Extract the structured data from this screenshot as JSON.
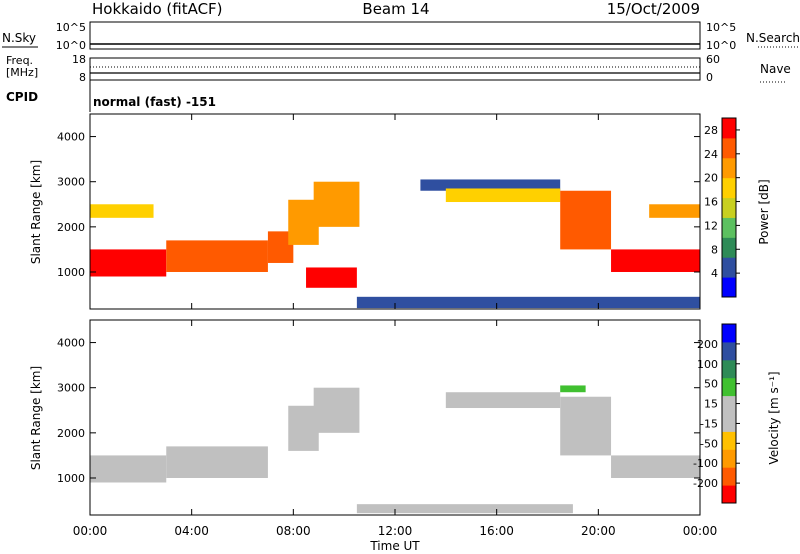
{
  "header": {
    "station": "Hokkaido (fitACF)",
    "beam": "Beam 14",
    "date": "15/Oct/2009"
  },
  "top_panels": {
    "nsky_label": "N.Sky",
    "nsky_ticks": [
      "10^5",
      "10^0"
    ],
    "nsearch_label": "N.Search",
    "nsearch_ticks": [
      "10^5",
      "10^0"
    ],
    "freq_label_1": "Freq.",
    "freq_label_2": "[MHz]",
    "freq_ticks": [
      "18",
      "8"
    ],
    "nave_label": "Nave",
    "nave_ticks": [
      "60",
      "0"
    ],
    "cpid_label": "CPID",
    "cpid_value": "normal (fast) -151"
  },
  "colors": {
    "power": [
      "#0000ff",
      "#2f4fa0",
      "#2e8b57",
      "#5cc060",
      "#c8d020",
      "#ffd000",
      "#ff9a00",
      "#ff5a00",
      "#ff0000"
    ],
    "velocity": [
      "#ff0000",
      "#ff5a00",
      "#ff9a00",
      "#ffc000",
      "#c0c0c0",
      "#c0c0c0",
      "#40c030",
      "#2e8b57",
      "#2f4fa0",
      "#0000ff"
    ],
    "ground": "#c0c0c0"
  },
  "chart_data": [
    {
      "type": "heatmap",
      "name": "power",
      "ylabel": "Slant Range [km]",
      "xlabel": "",
      "xlim": [
        "00:00",
        "24:00"
      ],
      "ylim": [
        180,
        4500
      ],
      "yticks": [
        "1000",
        "2000",
        "3000",
        "4000"
      ],
      "xticks": [
        "00:00",
        "04:00",
        "08:00",
        "12:00",
        "16:00",
        "20:00",
        "00:00"
      ],
      "colorbar_label": "Power [dB]",
      "colorbar_ticks": [
        "4",
        "8",
        "12",
        "16",
        "20",
        "24",
        "28"
      ],
      "colorbar_range": [
        0,
        30
      ],
      "regions": [
        {
          "t0": 0.0,
          "t1": 3.0,
          "r0": 900,
          "r1": 1500,
          "value": 28
        },
        {
          "t0": 3.0,
          "t1": 7.0,
          "r0": 1000,
          "r1": 1700,
          "value": 26
        },
        {
          "t0": 7.0,
          "t1": 8.0,
          "r0": 1200,
          "r1": 1900,
          "value": 24
        },
        {
          "t0": 7.8,
          "t1": 9.0,
          "r0": 1600,
          "r1": 2600,
          "value": 22
        },
        {
          "t0": 8.8,
          "t1": 10.6,
          "r0": 2000,
          "r1": 3000,
          "value": 20
        },
        {
          "t0": 8.5,
          "t1": 10.5,
          "r0": 650,
          "r1": 1100,
          "value": 27
        },
        {
          "t0": 0.0,
          "t1": 2.5,
          "r0": 2200,
          "r1": 2500,
          "value": 18
        },
        {
          "t0": 13.0,
          "t1": 18.5,
          "r0": 2800,
          "r1": 3050,
          "value": 4
        },
        {
          "t0": 14.0,
          "t1": 18.5,
          "r0": 2550,
          "r1": 2850,
          "value": 18
        },
        {
          "t0": 18.5,
          "t1": 20.5,
          "r0": 1500,
          "r1": 2800,
          "value": 24
        },
        {
          "t0": 20.5,
          "t1": 24.0,
          "r0": 1000,
          "r1": 1500,
          "value": 28
        },
        {
          "t0": 22.0,
          "t1": 24.0,
          "r0": 2200,
          "r1": 2500,
          "value": 20
        },
        {
          "t0": 10.5,
          "t1": 24.0,
          "r0": 200,
          "r1": 450,
          "value": 6
        }
      ]
    },
    {
      "type": "heatmap",
      "name": "velocity",
      "ylabel": "Slant Range [km]",
      "xlabel": "Time UT",
      "xlim": [
        "00:00",
        "24:00"
      ],
      "ylim": [
        180,
        4500
      ],
      "yticks": [
        "1000",
        "2000",
        "3000",
        "4000"
      ],
      "xticks": [
        "00:00",
        "04:00",
        "08:00",
        "12:00",
        "16:00",
        "20:00",
        "00:00"
      ],
      "colorbar_label": "Velocity [m s⁻¹]",
      "colorbar_ticks": [
        "200",
        "100",
        "50",
        "15",
        "-15",
        "-50",
        "-100",
        "-200"
      ],
      "colorbar_range": [
        -250,
        250
      ],
      "regions": [
        {
          "t0": 0.0,
          "t1": 3.0,
          "r0": 900,
          "r1": 1500,
          "value": 0
        },
        {
          "t0": 3.0,
          "t1": 7.0,
          "r0": 1000,
          "r1": 1700,
          "value": 0
        },
        {
          "t0": 7.8,
          "t1": 9.0,
          "r0": 1600,
          "r1": 2600,
          "value": 0
        },
        {
          "t0": 8.8,
          "t1": 10.6,
          "r0": 2000,
          "r1": 3000,
          "value": 0
        },
        {
          "t0": 14.0,
          "t1": 18.5,
          "r0": 2550,
          "r1": 2900,
          "value": 0
        },
        {
          "t0": 18.5,
          "t1": 20.5,
          "r0": 1500,
          "r1": 2800,
          "value": 0
        },
        {
          "t0": 20.5,
          "t1": 24.0,
          "r0": 1000,
          "r1": 1500,
          "value": 0
        },
        {
          "t0": 18.5,
          "t1": 19.5,
          "r0": 2900,
          "r1": 3050,
          "value": 60
        },
        {
          "t0": 10.5,
          "t1": 19.0,
          "r0": 220,
          "r1": 420,
          "value": 40
        }
      ]
    }
  ]
}
